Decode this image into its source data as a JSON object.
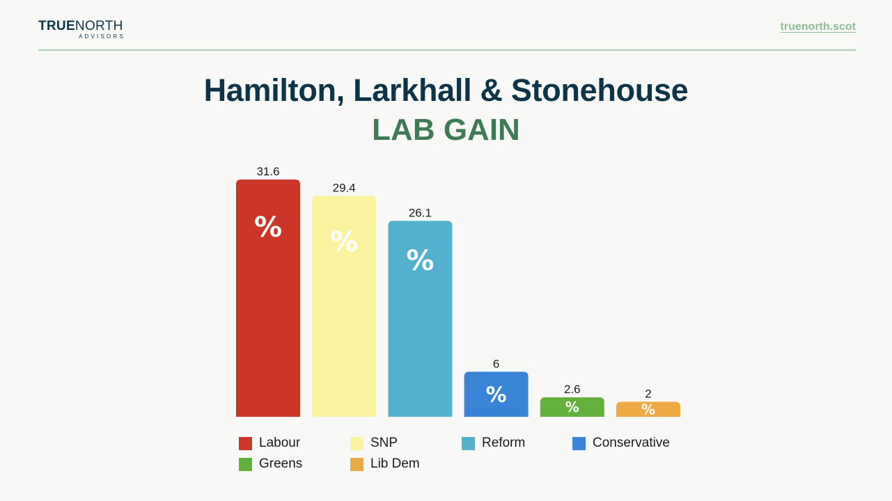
{
  "header": {
    "logo_main_bold": "TRUE",
    "logo_main_light": "NORTH",
    "logo_sub": "ADVISORS",
    "site_link": "truenorth.scot"
  },
  "title": "Hamilton, Larkhall & Stonehouse",
  "subtitle": "LAB GAIN",
  "colors": {
    "title": "#0d3447",
    "subtitle": "#3e7a55",
    "link": "#8dbf95",
    "rule": "#a9cfaf"
  },
  "chart_data": {
    "type": "bar",
    "title": "Hamilton, Larkhall & Stonehouse",
    "subtitle": "LAB GAIN",
    "xlabel": "",
    "ylabel": "",
    "unit_glyph": "%",
    "categories": [
      "Labour",
      "SNP",
      "Reform",
      "Conservative",
      "Greens",
      "Lib Dem"
    ],
    "values": [
      31.6,
      29.4,
      26.1,
      6,
      2.6,
      2
    ],
    "value_labels": [
      "31.6",
      "29.4",
      "26.1",
      "6",
      "2.6",
      "2"
    ],
    "colors": [
      "#cc3629",
      "#fbf3a0",
      "#54b1cd",
      "#3a84d7",
      "#63b03f",
      "#eeaa42"
    ],
    "ylim": [
      0,
      31.6
    ],
    "grid": false,
    "legend_position": "bottom"
  }
}
